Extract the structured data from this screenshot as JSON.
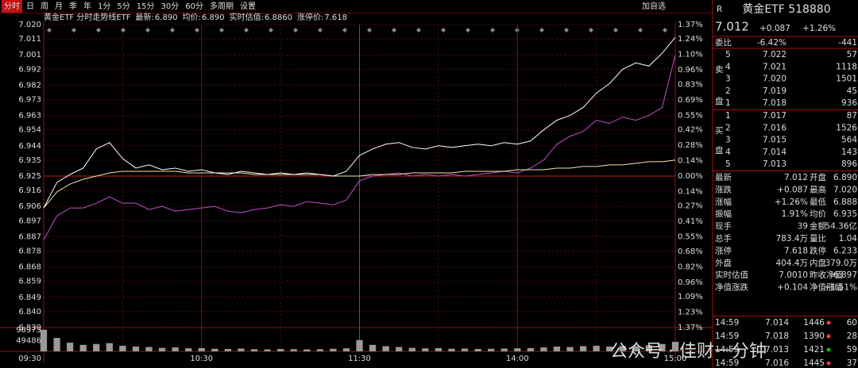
{
  "toolbar": {
    "tabs": [
      "分时",
      "日",
      "周",
      "月",
      "季",
      "年",
      "1分",
      "5分",
      "15分",
      "30分",
      "60分",
      "多周期",
      "设置"
    ],
    "active": 0,
    "right": "加自选"
  },
  "chart_data": {
    "type": "line",
    "title": "黄金ETF 分时走势线ETF",
    "legend_items": [
      {
        "label": "最新:",
        "value": "6.890",
        "color": "#ffffff"
      },
      {
        "label": "均价:",
        "value": "6.890",
        "color": "#f0e060"
      },
      {
        "label": "实时估值:",
        "value": "6.8860",
        "color": "#e060e0"
      },
      {
        "label": "涨停价:",
        "value": "7.618",
        "color": "#ff4040"
      }
    ],
    "x": [
      0,
      5,
      10,
      15,
      20,
      25,
      30,
      35,
      40,
      45,
      50,
      55,
      60,
      65,
      70,
      75,
      80,
      85,
      90,
      95,
      100,
      105,
      110,
      115,
      120,
      125,
      130,
      135,
      140,
      145,
      150,
      155,
      160,
      165,
      170,
      175,
      180,
      185,
      190,
      195,
      200,
      205,
      210,
      215,
      220,
      225,
      230,
      235,
      240
    ],
    "xlim": [
      0,
      240
    ],
    "xticks": [
      {
        "value": 0,
        "label": "09:30"
      },
      {
        "value": 60,
        "label": "10:30"
      },
      {
        "value": 120,
        "label": "11:30"
      },
      {
        "value": 180,
        "label": "14:00"
      },
      {
        "value": 240,
        "label": "15:00"
      }
    ],
    "series": [
      {
        "name": "最新",
        "color": "#ffffff",
        "values": [
          6.905,
          6.921,
          6.926,
          6.93,
          6.942,
          6.946,
          6.936,
          6.93,
          6.932,
          6.929,
          6.93,
          6.928,
          6.929,
          6.927,
          6.926,
          6.928,
          6.927,
          6.926,
          6.927,
          6.926,
          6.927,
          6.926,
          6.925,
          6.928,
          6.938,
          6.942,
          6.945,
          6.946,
          6.943,
          6.942,
          6.944,
          6.943,
          6.944,
          6.945,
          6.944,
          6.946,
          6.945,
          6.947,
          6.954,
          6.96,
          6.963,
          6.968,
          6.977,
          6.983,
          6.992,
          6.996,
          6.994,
          7.002,
          7.012
        ]
      },
      {
        "name": "均价",
        "color": "#f0eab0",
        "values": [
          6.905,
          6.915,
          6.92,
          6.923,
          6.925,
          6.927,
          6.928,
          6.928,
          6.928,
          6.928,
          6.928,
          6.927,
          6.927,
          6.927,
          6.927,
          6.927,
          6.926,
          6.926,
          6.926,
          6.926,
          6.926,
          6.926,
          6.925,
          6.925,
          6.925,
          6.926,
          6.926,
          6.926,
          6.927,
          6.927,
          6.927,
          6.927,
          6.928,
          6.928,
          6.928,
          6.928,
          6.929,
          6.929,
          6.929,
          6.93,
          6.93,
          6.931,
          6.931,
          6.932,
          6.932,
          6.933,
          6.934,
          6.934,
          6.935
        ]
      },
      {
        "name": "实时估值",
        "color": "#c050c8",
        "values": [
          6.885,
          6.9,
          6.905,
          6.905,
          6.908,
          6.912,
          6.908,
          6.908,
          6.904,
          6.906,
          6.903,
          6.904,
          6.905,
          6.906,
          6.903,
          6.902,
          6.904,
          6.905,
          6.907,
          6.906,
          6.909,
          6.908,
          6.907,
          6.91,
          6.922,
          6.925,
          6.926,
          6.927,
          6.925,
          6.926,
          6.925,
          6.926,
          6.925,
          6.926,
          6.927,
          6.928,
          6.927,
          6.93,
          6.935,
          6.945,
          6.95,
          6.953,
          6.96,
          6.958,
          6.962,
          6.96,
          6.963,
          6.968,
          7.001
        ]
      }
    ],
    "prev_close": 6.925,
    "ylim": [
      6.83,
      7.02
    ],
    "yticks": [
      {
        "value": 7.02,
        "label": "7.020"
      },
      7.011,
      7.001,
      6.992,
      6.982,
      6.973,
      6.963,
      6.954,
      6.944,
      6.935,
      6.925,
      6.916,
      6.906,
      6.897,
      6.887,
      6.878,
      6.868,
      6.859,
      6.849,
      {
        "value": 6.84,
        "label": "6.840"
      },
      {
        "value": 6.83,
        "label": "6.830"
      }
    ],
    "y2lim": [
      -1.37,
      1.37
    ],
    "y2ticks": [
      {
        "value": 1.37,
        "label": "1.37%"
      },
      {
        "value": 1.24,
        "label": "1.24%"
      },
      {
        "value": 1.1,
        "label": "1.10%"
      },
      {
        "value": 0.96,
        "label": "0.96%"
      },
      {
        "value": 0.83,
        "label": "0.83%"
      },
      {
        "value": 0.69,
        "label": "0.69%"
      },
      {
        "value": 0.55,
        "label": "0.55%"
      },
      {
        "value": 0.42,
        "label": "0.42%"
      },
      {
        "value": 0.28,
        "label": "0.28%"
      },
      {
        "value": 0.14,
        "label": "0.14%"
      },
      {
        "value": 0,
        "label": "0.00%"
      },
      {
        "value": -0.14,
        "label": "0.14%"
      },
      {
        "value": -0.27,
        "label": "0.27%"
      },
      {
        "value": -0.41,
        "label": "0.41%"
      },
      {
        "value": -0.55,
        "label": "0.55%"
      },
      {
        "value": -0.68,
        "label": "0.68%"
      },
      {
        "value": -0.82,
        "label": "0.82%"
      },
      {
        "value": -0.96,
        "label": "0.96%"
      },
      {
        "value": -1.09,
        "label": "1.09%"
      },
      {
        "value": -1.23,
        "label": "1.23%"
      },
      {
        "value": -1.37,
        "label": "1.37%"
      }
    ],
    "volume": {
      "color": "#9a9a9a",
      "ylim": [
        0,
        110000
      ],
      "yticks": [
        98973,
        49486
      ],
      "values": [
        100000,
        62000,
        40000,
        30000,
        34000,
        38000,
        26000,
        22000,
        20000,
        16000,
        18000,
        14000,
        15000,
        12000,
        11000,
        13000,
        10000,
        9000,
        11000,
        10000,
        9000,
        10000,
        12000,
        14000,
        52000,
        30000,
        24000,
        20000,
        16000,
        14000,
        15000,
        12000,
        13000,
        11000,
        12000,
        13000,
        14000,
        15000,
        18000,
        22000,
        20000,
        24000,
        26000,
        22000,
        25000,
        24000,
        28000,
        34000,
        44000
      ]
    },
    "watermark": "公众号 · 佳财一分钟"
  },
  "panel": {
    "tag": "R",
    "name": "黄金ETF 518880",
    "price": "7.012",
    "change": "+0.087",
    "pct": "+1.26%",
    "weibi": [
      "委比",
      "-6.42%",
      "-441"
    ],
    "sell_label": [
      "卖",
      "盘"
    ],
    "buy_label": [
      "买",
      "盘"
    ],
    "sell": [
      [
        "5",
        "7.022",
        "57"
      ],
      [
        "4",
        "7.021",
        "1118"
      ],
      [
        "3",
        "7.020",
        "1501"
      ],
      [
        "2",
        "7.019",
        "45"
      ],
      [
        "1",
        "7.018",
        "936"
      ]
    ],
    "buy": [
      [
        "1",
        "7.017",
        "87"
      ],
      [
        "2",
        "7.016",
        "1526"
      ],
      [
        "3",
        "7.015",
        "564"
      ],
      [
        "4",
        "7.014",
        "143"
      ],
      [
        "5",
        "7.013",
        "896"
      ]
    ],
    "stats": [
      {
        "cells": [
          "最新",
          "7.012",
          "开盘",
          "6.890"
        ],
        "colors": [
          "#ff4040",
          "#ff4040"
        ]
      },
      {
        "cells": [
          "涨跌",
          "+0.087",
          "最高",
          "7.020"
        ],
        "colors": [
          "#ff4040",
          "#ff4040"
        ]
      },
      {
        "cells": [
          "涨幅",
          "+1.26%",
          "最低",
          "6.888"
        ],
        "colors": [
          "#ff4040",
          "#00d000"
        ]
      },
      {
        "cells": [
          "振幅",
          "1.91%",
          "均价",
          "6.935"
        ],
        "colors": [
          "#ff4040",
          "#ff4040"
        ]
      },
      {
        "cells": [
          "现手",
          "39",
          "金额",
          "54.36亿"
        ],
        "colors": [
          "#f0e060",
          "#40d0e0"
        ]
      },
      {
        "cells": [
          "总手",
          "783.4万",
          "量比",
          "1.04"
        ],
        "colors": [
          "#f0e060",
          "#ff4040"
        ]
      },
      {
        "cells": [
          "涨停",
          "7.618",
          "跌停",
          "6.233"
        ],
        "colors": [
          "#ff4040",
          "#00d000"
        ]
      },
      {
        "cells": [
          "外盘",
          "404.4万",
          "内盘",
          "379.0万"
        ],
        "colors": [
          "#ff4040",
          "#00d000"
        ]
      },
      {
        "cells": [
          "实时估值",
          "7.0010",
          "昨收净值",
          "6.897"
        ],
        "colors": [
          "#ff4040",
          "#dddddd"
        ]
      },
      {
        "cells": [
          "净值涨跌",
          "+0.104",
          "净值涨幅",
          "+1.51%"
        ],
        "colors": [
          "#ff4040",
          "#ff4040"
        ]
      }
    ],
    "trades": [
      {
        "cells": [
          "14:59",
          "7.014",
          "1446",
          "60"
        ],
        "up": true
      },
      {
        "cells": [
          "14:59",
          "7.018",
          "1390",
          "28"
        ],
        "up": true
      },
      {
        "cells": [
          "14:59",
          "7.013",
          "1421",
          "59"
        ],
        "up": false
      },
      {
        "cells": [
          "14:59",
          "7.016",
          "1445",
          "37"
        ],
        "up": true
      }
    ]
  }
}
